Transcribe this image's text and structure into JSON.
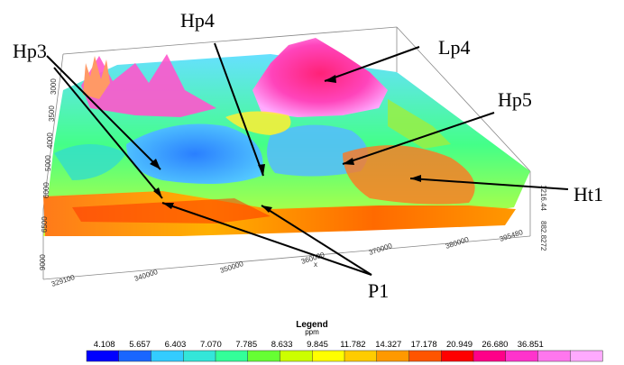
{
  "annotations": [
    "Hp3",
    "Hp4",
    "Lp4",
    "Hp5",
    "Ht1",
    "P1"
  ],
  "x_axis": {
    "label": "x",
    "ticks": [
      "329100",
      "340000",
      "350000",
      "360000",
      "370000",
      "380000",
      "395480"
    ]
  },
  "y_axis": {
    "ticks": [
      "1216.44",
      "882.8272"
    ],
    "side_ticks": [
      "3000",
      "3500",
      "4000",
      "5000",
      "6000",
      "6500",
      "9000"
    ]
  },
  "legend": {
    "title": "Legend",
    "unit": "ppm",
    "values": [
      "4.108",
      "5.657",
      "6.403",
      "7.070",
      "7.785",
      "8.633",
      "9.845",
      "11.782",
      "14.327",
      "17.178",
      "20.949",
      "26.680",
      "36.851"
    ],
    "colors": [
      "#0000ff",
      "#1a66ff",
      "#33ccff",
      "#33e6d9",
      "#33ff99",
      "#66ff33",
      "#ccff00",
      "#ffff00",
      "#ffcc00",
      "#ff9900",
      "#ff5500",
      "#ff0000",
      "#ff0088",
      "#ff33cc",
      "#ff77ee",
      "#ffaaff"
    ]
  }
}
